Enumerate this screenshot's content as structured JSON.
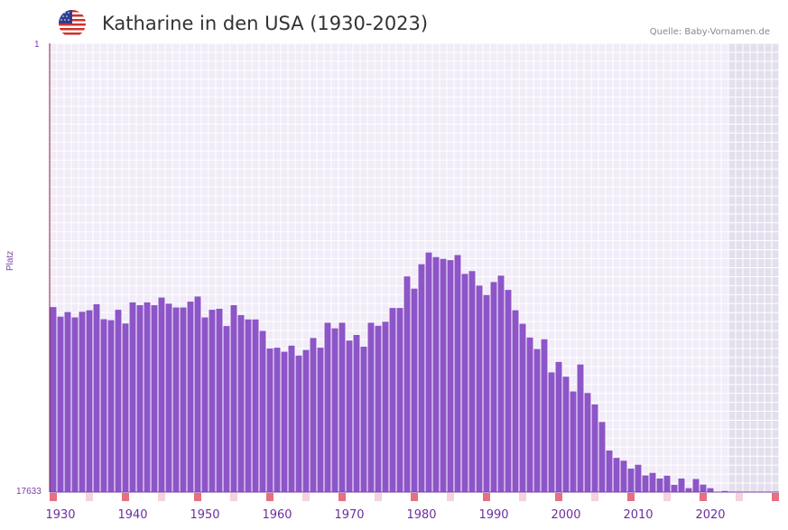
{
  "header": {
    "title": "Katharine in den USA (1930-2023)",
    "source": "Quelle: Baby-Vornamen.de",
    "flag_icon": "us-flag-icon"
  },
  "chart_data": {
    "type": "bar",
    "title": "Katharine in den USA (1930-2023)",
    "ylabel": "Platz",
    "xlabel": "",
    "y_reversed": true,
    "ylim": [
      1,
      17633
    ],
    "y_tick_labels": [
      "1",
      "17633"
    ],
    "x_tick_labels": [
      "1930",
      "1940",
      "1950",
      "1960",
      "1970",
      "1980",
      "1990",
      "2000",
      "2010",
      "2020"
    ],
    "x_range": [
      1929,
      2029
    ],
    "bar_color": "#8d55c8",
    "x": [
      1929,
      1930,
      1931,
      1932,
      1933,
      1934,
      1935,
      1936,
      1937,
      1938,
      1939,
      1940,
      1941,
      1942,
      1943,
      1944,
      1945,
      1946,
      1947,
      1948,
      1949,
      1950,
      1951,
      1952,
      1953,
      1954,
      1955,
      1956,
      1957,
      1958,
      1959,
      1960,
      1961,
      1962,
      1963,
      1964,
      1965,
      1966,
      1967,
      1968,
      1969,
      1970,
      1971,
      1972,
      1973,
      1974,
      1975,
      1976,
      1977,
      1978,
      1979,
      1980,
      1981,
      1982,
      1983,
      1984,
      1985,
      1986,
      1987,
      1988,
      1989,
      1990,
      1991,
      1992,
      1993,
      1994,
      1995,
      1996,
      1997,
      1998,
      1999,
      2000,
      2001,
      2002,
      2003,
      2004,
      2005,
      2006,
      2007,
      2008,
      2009,
      2010,
      2011,
      2012,
      2013,
      2014,
      2015,
      2016,
      2017,
      2018,
      2019,
      2020,
      2021,
      2022
    ],
    "values": [
      10365,
      10740,
      10560,
      10770,
      10550,
      10490,
      10250,
      10840,
      10880,
      10470,
      11010,
      10180,
      10290,
      10180,
      10290,
      9990,
      10230,
      10380,
      10380,
      10150,
      9950,
      10770,
      10470,
      10430,
      11110,
      10290,
      10680,
      10850,
      10850,
      11300,
      11990,
      11960,
      12120,
      11880,
      12270,
      12050,
      11580,
      11960,
      10980,
      11200,
      10980,
      11680,
      11460,
      11920,
      10980,
      11100,
      10940,
      10400,
      10400,
      9160,
      9640,
      8680,
      8220,
      8400,
      8470,
      8520,
      8320,
      9060,
      8950,
      9520,
      9890,
      9380,
      9130,
      9690,
      10490,
      11020,
      11560,
      12010,
      11630,
      12930,
      12520,
      13100,
      13680,
      12620,
      13740,
      14190,
      14880,
      16000,
      16290,
      16400,
      16710,
      16560,
      16980,
      16880,
      17100,
      16990,
      17350,
      17100,
      17480,
      17120,
      17340,
      17480,
      17640,
      17590
    ],
    "marker_years": [
      1929,
      1934,
      1939,
      1944,
      1949,
      1954,
      1959,
      1964,
      1969,
      1974,
      1979,
      1984,
      1989,
      1994,
      1999,
      2004,
      2009,
      2014,
      2019,
      2024,
      2029
    ],
    "marker_strong": [
      1929,
      1939,
      1949,
      1959,
      1969,
      1979,
      1989,
      1999,
      2009,
      2019,
      2029
    ]
  }
}
